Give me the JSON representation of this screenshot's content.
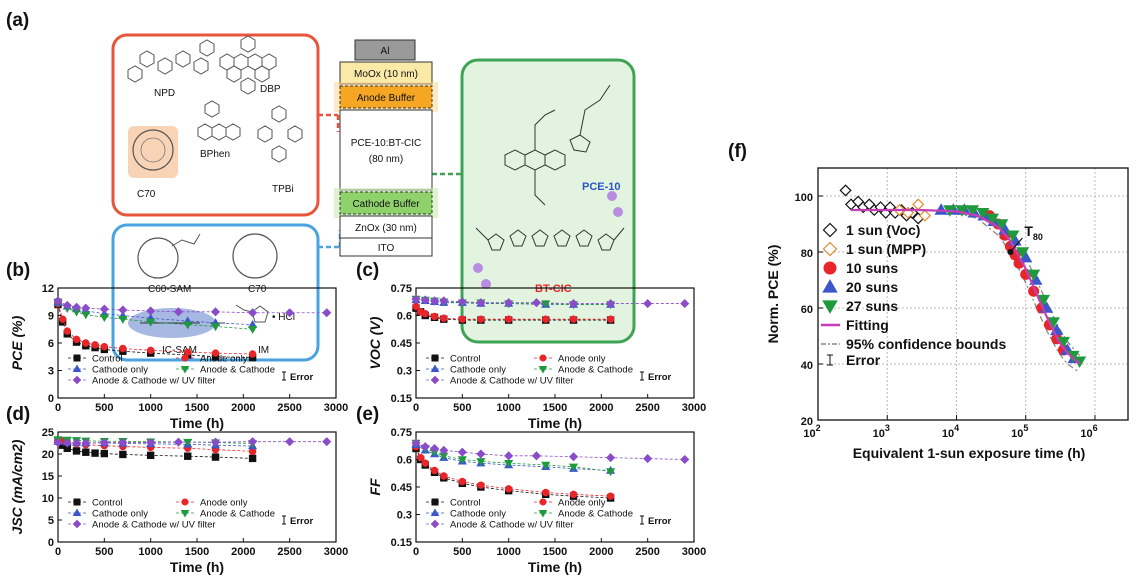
{
  "panel_labels": {
    "a": "(a)",
    "b": "(b)",
    "c": "(c)",
    "d": "(d)",
    "e": "(e)",
    "f": "(f)"
  },
  "schematic": {
    "anode_molecules": [
      "NPD",
      "DBP",
      "BPhen",
      "C70",
      "TPBi"
    ],
    "cathode_molecules": [
      "C60-SAM",
      "C70",
      "IC-SAM",
      "IM"
    ],
    "im_suffix": "• HCl",
    "polymer_names": [
      "PCE-10",
      "BT-CIC"
    ],
    "stack": [
      "Al",
      "MoOx (10 nm)",
      "Anode Buffer",
      "PCE-10:BT-CIC",
      "(80 nm)",
      "Cathode Buffer",
      "ZnOx (30 nm)",
      "ITO"
    ],
    "colors": {
      "anode_box": "#e8553d",
      "cathode_box": "#4aa3e0",
      "polymer_box": "#3fa356",
      "anode_glow": "#f5a623",
      "cathode_glow": "#8fd16a"
    }
  },
  "series_style": {
    "Control": {
      "color": "#111111",
      "marker": "square"
    },
    "Anode only": {
      "color": "#e8262a",
      "marker": "circle"
    },
    "Cathode only": {
      "color": "#3b57c9",
      "marker": "triangle"
    },
    "Anode & Cathode": {
      "color": "#1e9a3c",
      "marker": "triangle-down"
    },
    "Anode & Cathode w/ UV filter": {
      "color": "#8a4cc9",
      "marker": "diamond"
    }
  },
  "chart_data": [
    {
      "id": "b",
      "type": "line",
      "xlabel": "Time (h)",
      "ylabel": "PCE (%)",
      "xlim": [
        0,
        3000
      ],
      "ylim": [
        0,
        12
      ],
      "xticks": [
        0,
        500,
        1000,
        1500,
        2000,
        2500,
        3000
      ],
      "yticks": [
        0,
        3,
        6,
        9,
        12
      ],
      "error_label": "Error",
      "legend_position": "bottom-left",
      "series": [
        {
          "name": "Control",
          "x": [
            0,
            50,
            100,
            200,
            300,
            400,
            500,
            700,
            1000,
            1400,
            1700,
            2100
          ],
          "y": [
            10.2,
            8.3,
            7.0,
            6.1,
            5.7,
            5.5,
            5.3,
            5.1,
            4.9,
            4.7,
            4.5,
            4.4
          ]
        },
        {
          "name": "Anode only",
          "x": [
            0,
            50,
            100,
            200,
            300,
            400,
            500,
            700,
            1000,
            1400,
            1700,
            2100
          ],
          "y": [
            10.3,
            8.6,
            7.3,
            6.4,
            6.0,
            5.8,
            5.6,
            5.4,
            5.2,
            5.0,
            4.9,
            4.8
          ]
        },
        {
          "name": "Cathode only",
          "x": [
            0,
            100,
            200,
            300,
            500,
            700,
            1000,
            1400,
            1700,
            2100
          ],
          "y": [
            10.4,
            10.0,
            9.7,
            9.5,
            9.2,
            9.0,
            8.7,
            8.4,
            8.2,
            8.0
          ]
        },
        {
          "name": "Anode & Cathode",
          "x": [
            0,
            100,
            200,
            300,
            500,
            700,
            1000,
            1400,
            1700,
            2100
          ],
          "y": [
            10.5,
            9.8,
            9.4,
            9.1,
            8.8,
            8.6,
            8.3,
            8.0,
            7.8,
            7.5
          ]
        },
        {
          "name": "Anode & Cathode w/ UV filter",
          "x": [
            0,
            100,
            200,
            300,
            500,
            700,
            1000,
            1300,
            1700,
            2100,
            2500,
            2900
          ],
          "y": [
            10.6,
            10.1,
            9.9,
            9.8,
            9.7,
            9.6,
            9.5,
            9.4,
            9.4,
            9.3,
            9.3,
            9.3
          ]
        }
      ]
    },
    {
      "id": "c",
      "type": "line",
      "xlabel": "Time (h)",
      "ylabel": "VOC (V)",
      "xlim": [
        0,
        3000
      ],
      "ylim": [
        0.15,
        0.75
      ],
      "xticks": [
        0,
        500,
        1000,
        1500,
        2000,
        2500,
        3000
      ],
      "yticks": [
        0.15,
        0.3,
        0.45,
        0.6,
        0.75
      ],
      "error_label": "Error",
      "legend_position": "bottom-left",
      "series": [
        {
          "name": "Control",
          "x": [
            0,
            50,
            100,
            200,
            300,
            500,
            700,
            1000,
            1400,
            1700,
            2100
          ],
          "y": [
            0.64,
            0.62,
            0.6,
            0.59,
            0.58,
            0.575,
            0.575,
            0.575,
            0.575,
            0.575,
            0.575
          ]
        },
        {
          "name": "Anode only",
          "x": [
            0,
            50,
            100,
            200,
            300,
            500,
            700,
            1000,
            1400,
            1700,
            2100
          ],
          "y": [
            0.65,
            0.62,
            0.61,
            0.595,
            0.585,
            0.58,
            0.58,
            0.58,
            0.58,
            0.58,
            0.58
          ]
        },
        {
          "name": "Cathode only",
          "x": [
            0,
            100,
            200,
            300,
            500,
            700,
            1000,
            1400,
            1700,
            2100
          ],
          "y": [
            0.685,
            0.68,
            0.675,
            0.67,
            0.67,
            0.665,
            0.665,
            0.66,
            0.66,
            0.66
          ]
        },
        {
          "name": "Anode & Cathode",
          "x": [
            0,
            100,
            200,
            300,
            500,
            700,
            1000,
            1400,
            1700,
            2100
          ],
          "y": [
            0.69,
            0.685,
            0.68,
            0.675,
            0.67,
            0.67,
            0.665,
            0.665,
            0.66,
            0.66
          ]
        },
        {
          "name": "Anode & Cathode w/ UV filter",
          "x": [
            0,
            100,
            200,
            300,
            500,
            700,
            1000,
            1300,
            1700,
            2100,
            2500,
            2900
          ],
          "y": [
            0.69,
            0.685,
            0.68,
            0.68,
            0.675,
            0.67,
            0.67,
            0.67,
            0.665,
            0.665,
            0.665,
            0.665
          ]
        }
      ]
    },
    {
      "id": "d",
      "type": "line",
      "xlabel": "Time (h)",
      "ylabel": "JSC (mA/cm2)",
      "xlim": [
        0,
        3000
      ],
      "ylim": [
        0,
        25
      ],
      "xticks": [
        0,
        500,
        1000,
        1500,
        2000,
        2500,
        3000
      ],
      "yticks": [
        0,
        5,
        10,
        15,
        20,
        25
      ],
      "error_label": "Error",
      "legend_position": "bottom-left",
      "series": [
        {
          "name": "Control",
          "x": [
            0,
            50,
            100,
            200,
            300,
            400,
            500,
            700,
            1000,
            1400,
            1700,
            2100
          ],
          "y": [
            23.0,
            22.0,
            21.3,
            20.7,
            20.4,
            20.2,
            20.1,
            19.9,
            19.7,
            19.5,
            19.3,
            19.0
          ]
        },
        {
          "name": "Anode only",
          "x": [
            0,
            50,
            100,
            200,
            300,
            500,
            700,
            1000,
            1400,
            1700,
            2100
          ],
          "y": [
            23.2,
            23.0,
            22.6,
            22.3,
            22.1,
            21.9,
            21.7,
            21.5,
            21.3,
            21.0,
            20.6
          ]
        },
        {
          "name": "Cathode only",
          "x": [
            0,
            100,
            200,
            300,
            500,
            700,
            1000,
            1400,
            1700,
            2100
          ],
          "y": [
            22.8,
            22.7,
            22.6,
            22.5,
            22.5,
            22.4,
            22.3,
            22.2,
            22.0,
            21.8
          ]
        },
        {
          "name": "Anode & Cathode",
          "x": [
            0,
            100,
            200,
            300,
            500,
            700,
            1000,
            1400,
            1700,
            2100
          ],
          "y": [
            23.3,
            23.2,
            23.1,
            23.0,
            22.9,
            22.9,
            22.8,
            22.7,
            22.6,
            22.4
          ]
        },
        {
          "name": "Anode & Cathode w/ UV filter",
          "x": [
            0,
            100,
            200,
            300,
            500,
            700,
            1000,
            1300,
            1700,
            2100,
            2500,
            2900
          ],
          "y": [
            22.6,
            22.5,
            22.5,
            22.5,
            22.6,
            22.6,
            22.6,
            22.7,
            22.7,
            22.8,
            22.8,
            22.8
          ]
        }
      ]
    },
    {
      "id": "e",
      "type": "line",
      "xlabel": "Time (h)",
      "ylabel": "FF",
      "xlim": [
        0,
        3000
      ],
      "ylim": [
        0.15,
        0.75
      ],
      "xticks": [
        0,
        500,
        1000,
        1500,
        2000,
        2500,
        3000
      ],
      "yticks": [
        0.15,
        0.3,
        0.45,
        0.6,
        0.75
      ],
      "error_label": "Error",
      "legend_position": "bottom-left",
      "series": [
        {
          "name": "Control",
          "x": [
            0,
            50,
            100,
            200,
            300,
            500,
            700,
            1000,
            1400,
            1700,
            2100
          ],
          "y": [
            0.66,
            0.6,
            0.57,
            0.53,
            0.5,
            0.47,
            0.45,
            0.43,
            0.41,
            0.4,
            0.39
          ]
        },
        {
          "name": "Anode only",
          "x": [
            0,
            50,
            100,
            200,
            300,
            500,
            700,
            1000,
            1400,
            1700,
            2100
          ],
          "y": [
            0.67,
            0.61,
            0.58,
            0.54,
            0.51,
            0.48,
            0.46,
            0.44,
            0.42,
            0.41,
            0.4
          ]
        },
        {
          "name": "Cathode only",
          "x": [
            0,
            100,
            200,
            300,
            500,
            700,
            1000,
            1400,
            1700,
            2100
          ],
          "y": [
            0.68,
            0.65,
            0.63,
            0.61,
            0.59,
            0.58,
            0.57,
            0.56,
            0.55,
            0.54
          ]
        },
        {
          "name": "Anode & Cathode",
          "x": [
            0,
            100,
            200,
            300,
            500,
            700,
            1000,
            1400,
            1700,
            2100
          ],
          "y": [
            0.69,
            0.66,
            0.64,
            0.62,
            0.6,
            0.59,
            0.58,
            0.57,
            0.56,
            0.535
          ]
        },
        {
          "name": "Anode & Cathode w/ UV filter",
          "x": [
            0,
            100,
            200,
            300,
            500,
            700,
            1000,
            1300,
            1700,
            2100,
            2500,
            2900
          ],
          "y": [
            0.69,
            0.67,
            0.66,
            0.65,
            0.64,
            0.63,
            0.62,
            0.62,
            0.615,
            0.61,
            0.605,
            0.6
          ]
        }
      ]
    },
    {
      "id": "f",
      "type": "scatter",
      "xlabel": "Equivalent 1-sun exposure time (h)",
      "ylabel": "Norm. PCE (%)",
      "xscale": "log",
      "xlim": [
        100,
        3000000
      ],
      "ylim": [
        20,
        110
      ],
      "xticks": [
        100,
        1000,
        10000,
        100000,
        1000000
      ],
      "xticklabels": [
        "10^2",
        "10^3",
        "10^4",
        "10^5",
        "10^6"
      ],
      "yticks": [
        20,
        40,
        60,
        80,
        100
      ],
      "legend_position": "left",
      "annotation": {
        "label": "T80",
        "x": 60000,
        "y": 80
      },
      "series": [
        {
          "name": "1 sun (Voc)",
          "color": "#111111",
          "marker": "diamond-open",
          "x": [
            250,
            300,
            380,
            450,
            550,
            650,
            800,
            950,
            1100,
            1300,
            1600,
            1900,
            2300,
            2800
          ],
          "y": [
            102,
            97,
            98,
            96,
            97,
            95,
            96,
            94,
            96,
            94,
            95,
            93,
            94,
            92
          ]
        },
        {
          "name": "1 sun (MPP)",
          "color": "#e8892a",
          "marker": "diamond-open",
          "x": [
            1500,
            2000,
            2800,
            3500
          ],
          "y": [
            95,
            94,
            97,
            93
          ]
        },
        {
          "name": "10 suns",
          "color": "#e8262a",
          "marker": "circle",
          "x": [
            30000,
            40000,
            50000,
            60000,
            70000,
            80000,
            100000,
            130000,
            170000,
            220000,
            280000,
            350000
          ],
          "y": [
            93,
            90,
            86,
            82,
            79,
            76,
            72,
            66,
            60,
            54,
            49,
            45
          ]
        },
        {
          "name": "20 suns",
          "color": "#3b57c9",
          "marker": "triangle",
          "x": [
            6000,
            9000,
            13000,
            18000,
            25000,
            35000,
            50000,
            70000,
            100000,
            140000,
            200000,
            280000,
            400000,
            500000
          ],
          "y": [
            95,
            95,
            95,
            94,
            93,
            91,
            88,
            84,
            78,
            70,
            60,
            52,
            45,
            42
          ]
        },
        {
          "name": "27 suns",
          "color": "#1e9a3c",
          "marker": "triangle-down",
          "x": [
            8000,
            12000,
            17000,
            24000,
            33000,
            45000,
            65000,
            90000,
            130000,
            180000,
            250000,
            350000,
            480000,
            600000
          ],
          "y": [
            95,
            95,
            95,
            94,
            92,
            90,
            86,
            80,
            72,
            63,
            55,
            48,
            43,
            41
          ]
        }
      ],
      "fit": {
        "name": "Fitting",
        "color": "#c43fb5",
        "x": [
          300,
          1000,
          3000,
          10000,
          20000,
          40000,
          60000,
          100000,
          150000,
          200000,
          300000,
          400000,
          600000
        ],
        "y": [
          95,
          95,
          95,
          94.5,
          93,
          89,
          84,
          74,
          64,
          57,
          48,
          44,
          40
        ]
      },
      "bounds": {
        "name": "95% confidence bounds",
        "upper": {
          "x": [
            10000,
            20000,
            40000,
            60000,
            100000,
            150000,
            200000,
            300000,
            400000,
            600000
          ],
          "y": [
            95,
            94,
            91,
            87,
            78,
            69,
            62,
            53,
            48,
            43
          ]
        },
        "lower": {
          "x": [
            10000,
            20000,
            40000,
            60000,
            100000,
            150000,
            200000,
            300000,
            400000,
            600000
          ],
          "y": [
            94,
            92,
            86,
            80,
            69,
            59,
            52,
            44,
            40,
            37
          ]
        }
      },
      "error_label": "Error"
    }
  ]
}
